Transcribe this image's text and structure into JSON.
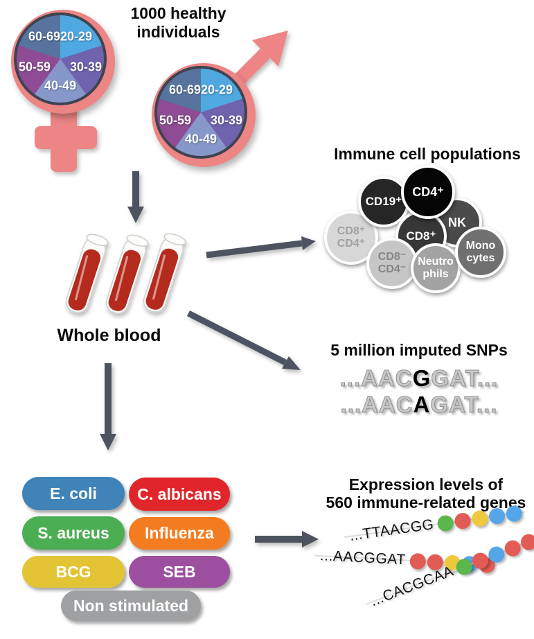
{
  "cohort": {
    "title": "1000 healthy\nindividuals",
    "age_groups": [
      {
        "label": "20-29",
        "color": "#4FA8E0"
      },
      {
        "label": "30-39",
        "color": "#6F63AE"
      },
      {
        "label": "40-49",
        "color": "#8698CA"
      },
      {
        "label": "50-59",
        "color": "#8D4C94"
      },
      {
        "label": "60-69",
        "color": "#56749E"
      }
    ],
    "symbol_color": "#ED8585"
  },
  "whole_blood": {
    "label": "Whole blood",
    "tube_color": "#B42A1E"
  },
  "immune": {
    "title": "Immune cell populations",
    "cells": [
      {
        "label": "CD8⁺\nCD4⁺",
        "color": "#D7D7D7",
        "text_color": "#A0A0A0"
      },
      {
        "label": "CD19⁺",
        "color": "#262626",
        "text_color": "#FFFFFF"
      },
      {
        "label": "NK",
        "color": "#4A4A4A",
        "text_color": "#FFFFFF"
      },
      {
        "label": "CD8⁺",
        "color": "#373737",
        "text_color": "#FFFFFF"
      },
      {
        "label": "CD4⁺",
        "color": "#050505",
        "text_color": "#FFFFFF"
      },
      {
        "label": "CD8⁻\nCD4⁻",
        "color": "#C6C6C6",
        "text_color": "#858585"
      },
      {
        "label": "Neutro\nphils",
        "color": "#A3A3A3",
        "text_color": "#FFFFFF"
      },
      {
        "label": "Mono\ncytes",
        "color": "#707070",
        "text_color": "#FFFFFF"
      }
    ]
  },
  "snps": {
    "title": "5 million imputed SNPs",
    "sequences": [
      {
        "prefix": "...AAC",
        "snp": "G",
        "suffix": "GAT..."
      },
      {
        "prefix": "...AAC",
        "snp": "A",
        "suffix": "GAT..."
      }
    ]
  },
  "stimuli": {
    "items": [
      {
        "label": "E. coli",
        "color": "#3F83B8"
      },
      {
        "label": "C. albicans",
        "color": "#E0262B"
      },
      {
        "label": "S. aureus",
        "color": "#4CAE52"
      },
      {
        "label": "Influenza",
        "color": "#F47C20"
      },
      {
        "label": "BCG",
        "color": "#E3C434"
      },
      {
        "label": "SEB",
        "color": "#9B4F9E"
      },
      {
        "label": "Non stimulated",
        "color": "#9FA0A2"
      }
    ]
  },
  "expression": {
    "title_line1": "Expression levels of",
    "title_line2": "560 immune-related genes",
    "dot_colors": {
      "green": "#5BB64B",
      "red": "#E25B54",
      "yellow": "#EFC93D",
      "blue": "#56A5E8"
    },
    "strands": [
      {
        "sequence": "...TTAACGG",
        "dots": [
          "green",
          "red",
          "yellow",
          "blue",
          "blue"
        ]
      },
      {
        "sequence": "...AACGGAT",
        "dots": [
          "red",
          "red",
          "yellow",
          "blue",
          "red"
        ]
      },
      {
        "sequence": "...CACGCAA",
        "dots": [
          "green",
          "red",
          "blue",
          "red",
          "red"
        ]
      }
    ]
  },
  "arrow_color": "#4D5360"
}
